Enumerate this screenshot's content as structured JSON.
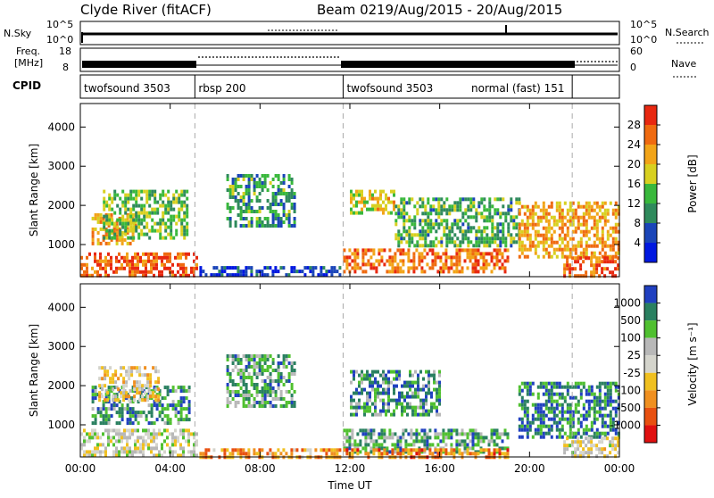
{
  "header": {
    "station": "Clyde River (fitACF)",
    "beam": "Beam 02",
    "dates": "19/Aug/2015 - 20/Aug/2015"
  },
  "strip_labels": {
    "nsky": "N.Sky",
    "nsky_top": "10^5",
    "nsky_bottom": "10^0",
    "nsearch": "N.Search",
    "nsearch_top": "10^5",
    "nsearch_bottom": "10^0",
    "freq_line1": "Freq.",
    "freq_line2": "[MHz]",
    "freq_top": "18",
    "freq_bottom": "8",
    "nave_top": "60",
    "nave_bottom": "0",
    "nave": "Nave",
    "cpid": "CPID"
  },
  "cpid_segments": [
    {
      "label": "twofsound 3503",
      "start_h": 0.0,
      "end_h": 5.1
    },
    {
      "label": "rbsp 200",
      "start_h": 5.1,
      "end_h": 11.7
    },
    {
      "label": "twofsound 3503",
      "start_h": 11.7,
      "end_h": 21.9
    },
    {
      "label": "normal (fast) 151",
      "start_h": 21.9,
      "end_h": 24.0
    }
  ],
  "colors": {
    "power_scale": [
      "#0018e0",
      "#1a45b8",
      "#2f8a5c",
      "#39b83c",
      "#d8d020",
      "#f2a418",
      "#ef6a10",
      "#e82810"
    ],
    "velocity_scale": [
      "#2040c0",
      "#2a8060",
      "#50c030",
      "#b8b8b8",
      "#d4d4cc",
      "#f0c020",
      "#f09020",
      "#e85010",
      "#e01010"
    ]
  },
  "chart_data": [
    {
      "type": "heatmap",
      "title": "Power",
      "ylabel": "Slant Range [km]",
      "xlabel": "",
      "x_range_hours": [
        0,
        24
      ],
      "ylim": [
        180,
        4600
      ],
      "x_tick_labels": [
        "00:00",
        "04:00",
        "08:00",
        "12:00",
        "16:00",
        "20:00",
        "00:00"
      ],
      "y_ticks": [
        1000,
        2000,
        3000,
        4000
      ],
      "colorbar": {
        "label": "Power [dB]",
        "ticks": [
          "4",
          "8",
          "12",
          "16",
          "20",
          "24",
          "28"
        ]
      },
      "regions": [
        {
          "t0": 0.0,
          "t1": 5.2,
          "r0": 200,
          "r1": 800,
          "level": 0.85
        },
        {
          "t0": 0.5,
          "t1": 2.5,
          "r0": 1000,
          "r1": 1800,
          "level": 0.7
        },
        {
          "t0": 1.0,
          "t1": 4.8,
          "r0": 1200,
          "r1": 2400,
          "level": 0.45
        },
        {
          "t0": 5.3,
          "t1": 11.5,
          "r0": 200,
          "r1": 450,
          "level": 0.15
        },
        {
          "t0": 6.5,
          "t1": 9.5,
          "r0": 1500,
          "r1": 2800,
          "level": 0.35
        },
        {
          "t0": 11.7,
          "t1": 19.0,
          "r0": 300,
          "r1": 900,
          "level": 0.8
        },
        {
          "t0": 12.0,
          "t1": 14.0,
          "r0": 1800,
          "r1": 2400,
          "level": 0.6
        },
        {
          "t0": 14.0,
          "t1": 19.5,
          "r0": 1000,
          "r1": 2200,
          "level": 0.4
        },
        {
          "t0": 19.5,
          "t1": 24.0,
          "r0": 700,
          "r1": 2100,
          "level": 0.7
        },
        {
          "t0": 21.5,
          "t1": 24.0,
          "r0": 200,
          "r1": 700,
          "level": 0.85
        }
      ]
    },
    {
      "type": "heatmap",
      "title": "Velocity",
      "ylabel": "Slant Range [km]",
      "xlabel": "Time UT",
      "x_range_hours": [
        0,
        24
      ],
      "ylim": [
        180,
        4600
      ],
      "x_tick_labels": [
        "00:00",
        "04:00",
        "08:00",
        "12:00",
        "16:00",
        "20:00",
        "00:00"
      ],
      "y_ticks": [
        1000,
        2000,
        3000,
        4000
      ],
      "colorbar": {
        "label": "Velocity [m s⁻¹]",
        "ticks": [
          "1000",
          "500",
          "100",
          "25",
          "-25",
          "-100",
          "-500",
          "-1000"
        ]
      },
      "regions": [
        {
          "t0": 0.0,
          "t1": 5.2,
          "r0": 200,
          "r1": 900,
          "level": 0.45
        },
        {
          "t0": 0.5,
          "t1": 4.8,
          "r0": 1000,
          "r1": 2000,
          "level": 0.2
        },
        {
          "t0": 0.8,
          "t1": 3.5,
          "r0": 1600,
          "r1": 2500,
          "level": 0.55
        },
        {
          "t0": 5.3,
          "t1": 11.5,
          "r0": 200,
          "r1": 400,
          "level": 0.7
        },
        {
          "t0": 6.5,
          "t1": 9.5,
          "r0": 1500,
          "r1": 2800,
          "level": 0.25
        },
        {
          "t0": 11.7,
          "t1": 19.0,
          "r0": 300,
          "r1": 900,
          "level": 0.25
        },
        {
          "t0": 11.7,
          "t1": 19.0,
          "r0": 180,
          "r1": 400,
          "level": 0.75
        },
        {
          "t0": 12.0,
          "t1": 16.0,
          "r0": 1300,
          "r1": 2400,
          "level": 0.2
        },
        {
          "t0": 19.5,
          "t1": 24.0,
          "r0": 700,
          "r1": 2100,
          "level": 0.15
        },
        {
          "t0": 21.5,
          "t1": 24.0,
          "r0": 200,
          "r1": 700,
          "level": 0.5
        }
      ]
    }
  ]
}
